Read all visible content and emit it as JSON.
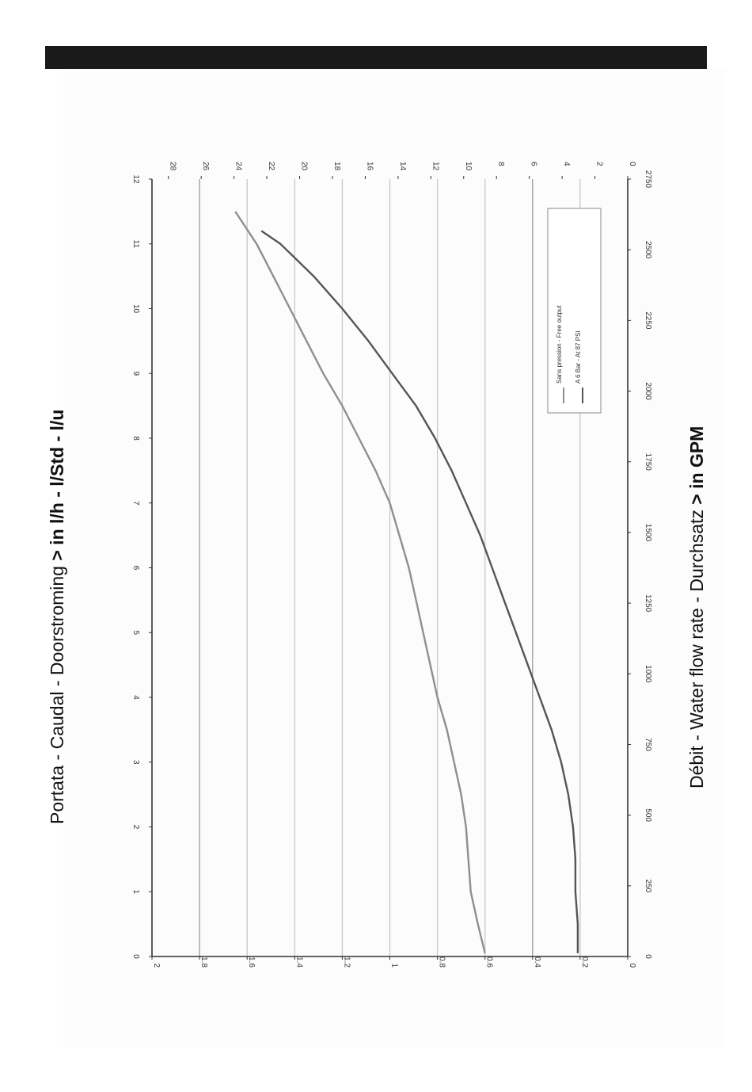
{
  "captions": {
    "top_prefix": "Portata - Caudal - Doorstroming ",
    "top_bold": "> in l/h - l/Std - l/u",
    "bottom_prefix": "Débit - Water flow rate - Durchsatz ",
    "bottom_bold": "> in GPM"
  },
  "chart_data": {
    "type": "line",
    "orientation": "rotated-90-clockwise",
    "grid": true,
    "x_gpm": {
      "label": "> in GPM",
      "range": [
        0,
        12
      ],
      "ticks": [
        0,
        1,
        2,
        3,
        4,
        5,
        6,
        7,
        8,
        9,
        10,
        11,
        12
      ]
    },
    "x_lh": {
      "label": "> in l/h - l/Std - l/u",
      "range": [
        0,
        2750
      ],
      "ticks": [
        0,
        250,
        500,
        750,
        1000,
        1250,
        1500,
        1750,
        2000,
        2250,
        2500,
        2750
      ]
    },
    "y_left": {
      "range": [
        0,
        2
      ],
      "ticks": [
        "0",
        "0.2",
        "0.4",
        "0.6",
        "0.8",
        "1",
        "1.2",
        "1.4",
        "1.6",
        "1.8",
        "2"
      ]
    },
    "y_right": {
      "range": [
        0,
        29
      ],
      "ticks": [
        "0",
        "2",
        "4",
        "6",
        "8",
        "10",
        "12",
        "14",
        "16",
        "18",
        "20",
        "22",
        "24",
        "26",
        "28"
      ]
    },
    "legend_position": "lower-right",
    "series": [
      {
        "name": "Sans pression - Free output",
        "color": "#8f8f8f",
        "x": [
          0.05,
          0.5,
          1,
          1.5,
          2,
          2.5,
          3,
          3.5,
          4,
          4.5,
          5,
          5.5,
          6,
          6.5,
          7,
          7.5,
          8,
          8.5,
          9,
          9.5,
          10,
          10.5,
          11,
          11.5
        ],
        "y": [
          0.6,
          0.63,
          0.66,
          0.67,
          0.68,
          0.7,
          0.73,
          0.76,
          0.8,
          0.83,
          0.86,
          0.89,
          0.92,
          0.96,
          1.0,
          1.06,
          1.13,
          1.2,
          1.28,
          1.35,
          1.42,
          1.49,
          1.56,
          1.65
        ]
      },
      {
        "name": "A 6 Bar - At 87 PSI",
        "color": "#555555",
        "x": [
          0.05,
          0.5,
          1,
          1.5,
          2,
          2.5,
          3,
          3.5,
          4,
          4.5,
          5,
          5.5,
          6,
          6.5,
          7,
          7.5,
          8,
          8.5,
          9,
          9.5,
          10,
          10.5,
          11,
          11.2
        ],
        "y": [
          0.21,
          0.21,
          0.22,
          0.22,
          0.23,
          0.25,
          0.28,
          0.32,
          0.37,
          0.42,
          0.47,
          0.52,
          0.57,
          0.62,
          0.68,
          0.74,
          0.81,
          0.89,
          0.99,
          1.09,
          1.2,
          1.32,
          1.46,
          1.54
        ]
      }
    ]
  }
}
